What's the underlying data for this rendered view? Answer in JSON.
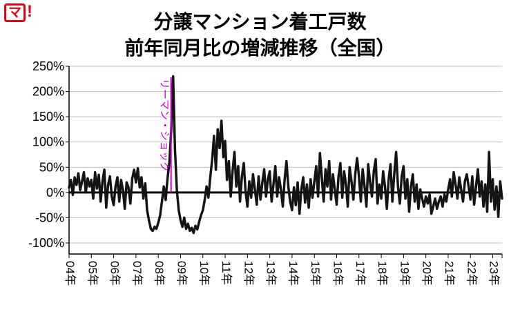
{
  "logo": {
    "text": "マ",
    "mark": "!"
  },
  "chart_data": {
    "type": "line",
    "title": "分譲マンション着工戸数",
    "subtitle": "前年同月比の増減推移（全国）",
    "xlabel": "",
    "ylabel": "",
    "ylim": [
      -100,
      250
    ],
    "ytick_step": 50,
    "ytick_labels": [
      "250%",
      "200%",
      "150%",
      "100%",
      "50%",
      "0%",
      "-50%",
      "-100%"
    ],
    "grid": "horizontal",
    "legend": "none",
    "categories": [
      "04年",
      "05年",
      "06年",
      "07年",
      "08年",
      "09年",
      "10年",
      "11年",
      "12年",
      "13年",
      "14年",
      "15年",
      "16年",
      "17年",
      "18年",
      "19年",
      "20年",
      "21年",
      "22年",
      "23年"
    ],
    "x_start_year": 2004,
    "annotation": {
      "label": "リーマン・ショック",
      "year": 2008,
      "month": 9,
      "color": "#cc00cc"
    },
    "series": [
      {
        "name": "前年同月比",
        "color": "#141414",
        "monthly_values": [
          10,
          25,
          -5,
          30,
          15,
          38,
          5,
          22,
          40,
          0,
          28,
          12,
          25,
          -12,
          40,
          8,
          35,
          -18,
          22,
          45,
          -30,
          15,
          32,
          -8,
          -25,
          12,
          30,
          -18,
          25,
          5,
          -32,
          20,
          10,
          -22,
          28,
          45,
          20,
          48,
          10,
          30,
          -12,
          18,
          -35,
          -55,
          -72,
          -76,
          -68,
          -72,
          -60,
          -45,
          -18,
          12,
          -15,
          28,
          60,
          125,
          230,
          85,
          5,
          -35,
          -55,
          -68,
          -50,
          -72,
          -62,
          -76,
          -70,
          -80,
          -66,
          -73,
          -58,
          -45,
          -35,
          -15,
          12,
          -10,
          30,
          65,
          112,
          45,
          125,
          88,
          142,
          70,
          102,
          25,
          62,
          -8,
          42,
          80,
          12,
          52,
          -18,
          32,
          58,
          2,
          -28,
          22,
          -10,
          36,
          6,
          -24,
          32,
          -14,
          20,
          46,
          -8,
          26,
          42,
          -18,
          16,
          52,
          -8,
          30,
          6,
          -28,
          26,
          62,
          12,
          -18,
          -35,
          10,
          -25,
          20,
          -42,
          6,
          30,
          -20,
          16,
          -30,
          26,
          -10,
          22,
          52,
          -8,
          78,
          30,
          -18,
          46,
          12,
          62,
          -14,
          36,
          6,
          -24,
          32,
          58,
          -10,
          42,
          16,
          -28,
          50,
          22,
          -14,
          36,
          68,
          32,
          -18,
          46,
          12,
          -28,
          56,
          20,
          -8,
          42,
          66,
          -22,
          16,
          -12,
          42,
          12,
          -32,
          26,
          56,
          -18,
          36,
          80,
          12,
          -22,
          32,
          52,
          -12,
          26,
          -38,
          12,
          36,
          -18,
          16,
          -32,
          6,
          -12,
          -28,
          -8,
          -22,
          -4,
          -42,
          -28,
          -12,
          -32,
          -18,
          -8,
          -28,
          -4,
          -18,
          6,
          26,
          -8,
          40,
          16,
          -12,
          30,
          6,
          -18,
          22,
          36,
          12,
          -14,
          32,
          -24,
          12,
          46,
          -8,
          22,
          -28,
          16,
          -38,
          80,
          -18,
          26,
          -34,
          12,
          -48,
          22,
          -12
        ]
      }
    ]
  }
}
